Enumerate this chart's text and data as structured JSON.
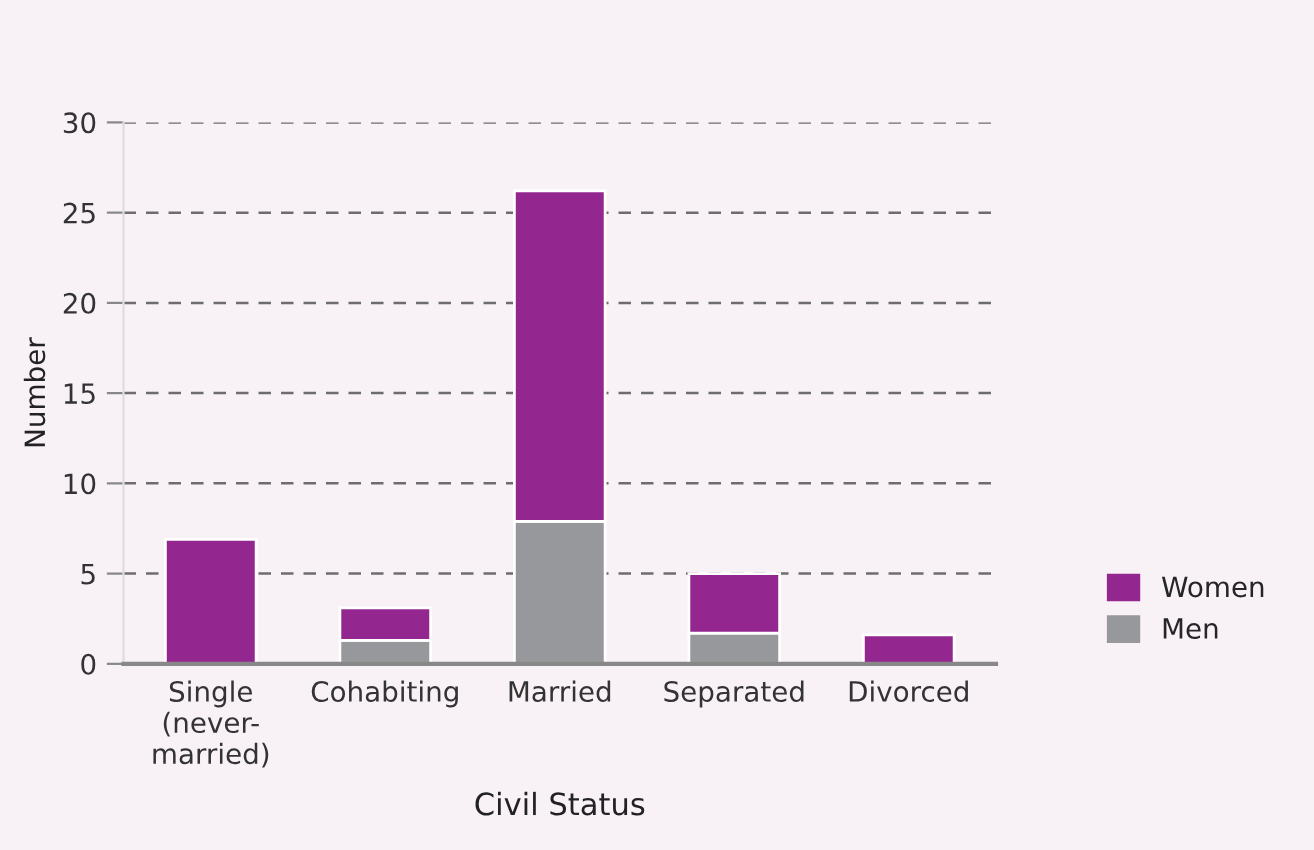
{
  "chart_data": {
    "type": "bar",
    "stacked": true,
    "xlabel": "Civil Status",
    "ylabel": "Number",
    "categories": [
      "Single\n(never-\nmarried)",
      "Cohabiting",
      "Married",
      "Separated",
      "Divorced"
    ],
    "series": [
      {
        "name": "Men",
        "color": "#97989b",
        "values": [
          0,
          1.3,
          7.9,
          1.7,
          0
        ]
      },
      {
        "name": "Women",
        "color": "#93278f",
        "values": [
          6.9,
          1.8,
          18.3,
          3.3,
          1.6
        ]
      }
    ],
    "ylim": [
      0,
      30
    ],
    "yticks": [
      0,
      5,
      10,
      15,
      20,
      25,
      30
    ],
    "grid": "y",
    "legend": "right"
  }
}
